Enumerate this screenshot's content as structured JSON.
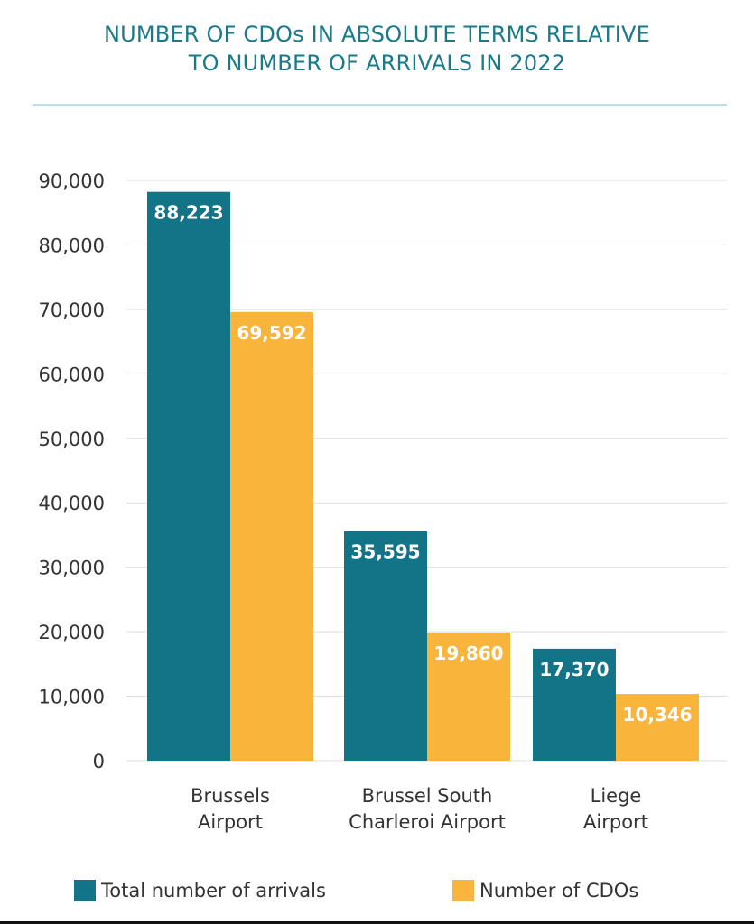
{
  "title": {
    "line1": "NUMBER OF CDOs IN ABSOLUTE TERMS RELATIVE",
    "line2": "TO NUMBER OF ARRIVALS IN 2022"
  },
  "colors": {
    "arrivals": "#127486",
    "cdos": "#f9b43c",
    "title": "#1a7a8a",
    "grid": "#dcdcdc"
  },
  "chart_data": {
    "type": "bar",
    "title": "NUMBER OF CDOs IN ABSOLUTE TERMS RELATIVE TO NUMBER OF ARRIVALS IN 2022",
    "categories": [
      [
        "Brussels",
        "Airport"
      ],
      [
        "Brussel South",
        "Charleroi Airport"
      ],
      [
        "Liege",
        "Airport"
      ]
    ],
    "series": [
      {
        "name": "Total number of arrivals",
        "values": [
          88223,
          35595,
          17370
        ],
        "labels": [
          "88,223",
          "35,595",
          "17,370"
        ]
      },
      {
        "name": "Number of CDOs",
        "values": [
          69592,
          19860,
          10346
        ],
        "labels": [
          "69,592",
          "19,860",
          "10,346"
        ]
      }
    ],
    "yticks": [
      "0",
      "10,000",
      "20,000",
      "30,000",
      "40,000",
      "50,000",
      "60,000",
      "70,000",
      "80,000",
      "90,000"
    ],
    "ylim": [
      0,
      90000
    ],
    "grid": true,
    "legend": "bottom"
  }
}
